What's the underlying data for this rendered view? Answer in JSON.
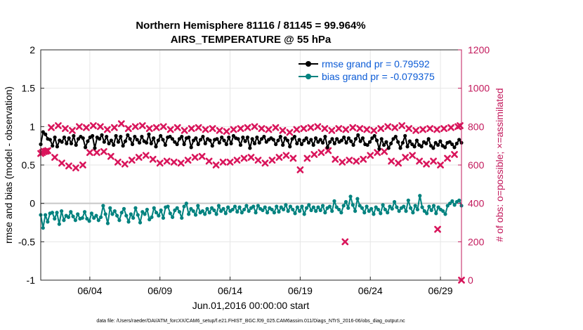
{
  "chart_data": {
    "type": "line",
    "title_line1": "Northern Hemisphere 81116 / 81145 = 99.964%",
    "title_line2": "AIRS_TEMPERATURE @ 55 hPa",
    "xlabel": "Jun.01,2016 00:00:00 start",
    "ylabel_left": "rmse and bias (model - observation)",
    "ylabel_right": "# of obs: o=possible; ×=assimilated",
    "x_range": [
      0.5,
      30.5
    ],
    "left_ylim": [
      -1,
      2
    ],
    "right_ylim": [
      0,
      1200
    ],
    "left_ticks": [
      {
        "v": 2,
        "label": "2"
      },
      {
        "v": 1.5,
        "label": "1.5"
      },
      {
        "v": 1,
        "label": "1"
      },
      {
        "v": 0.5,
        "label": "0.5"
      },
      {
        "v": 0,
        "label": "0"
      },
      {
        "v": -0.5,
        "label": "-0.5"
      },
      {
        "v": -1,
        "label": "-1"
      }
    ],
    "right_ticks": [
      {
        "v": 1200,
        "label": "1200"
      },
      {
        "v": 1000,
        "label": "1000"
      },
      {
        "v": 800,
        "label": "800"
      },
      {
        "v": 600,
        "label": "600"
      },
      {
        "v": 400,
        "label": "400"
      },
      {
        "v": 200,
        "label": "200"
      },
      {
        "v": 0,
        "label": "0"
      }
    ],
    "x_ticks": [
      {
        "v": 4,
        "label": "06/04"
      },
      {
        "v": 9,
        "label": "06/09"
      },
      {
        "v": 14,
        "label": "06/14"
      },
      {
        "v": 19,
        "label": "06/19"
      },
      {
        "v": 24,
        "label": "06/24"
      },
      {
        "v": 29,
        "label": "06/29"
      }
    ],
    "grid": true,
    "legend_position": "top-right",
    "colors": {
      "rmse": "#000000",
      "bias": "#00827f",
      "obs": "#d9155b",
      "right_axis": "#c2185b",
      "zero_line": "#c8c8c8",
      "legend_text": "#0b5bd6"
    },
    "series": [
      {
        "name": "rmse grand pr = 0.79592",
        "key": "rmse",
        "values": [
          0.77,
          0.93,
          0.9,
          0.84,
          0.83,
          0.75,
          0.86,
          0.74,
          0.82,
          0.8,
          0.86,
          0.78,
          0.85,
          0.78,
          0.88,
          0.76,
          0.84,
          0.87,
          0.85,
          0.73,
          0.81,
          0.86,
          0.88,
          0.72,
          0.86,
          0.84,
          0.89,
          0.8,
          0.87,
          0.78,
          0.82,
          0.76,
          0.88,
          0.8,
          0.87,
          0.75,
          0.81,
          0.89,
          0.84,
          0.77,
          0.87,
          0.83,
          0.79,
          0.87,
          0.81,
          0.79,
          0.9,
          0.78,
          0.85,
          0.74,
          0.82,
          0.88,
          0.83,
          0.76,
          0.86,
          0.87,
          0.84,
          0.8,
          0.77,
          0.84,
          0.87,
          0.77,
          0.85,
          0.86,
          0.73,
          0.82,
          0.85,
          0.77,
          0.83,
          0.87,
          0.78,
          0.84,
          0.82,
          0.75,
          0.83,
          0.84,
          0.79,
          0.86,
          0.82,
          0.77,
          0.86,
          0.78,
          0.88,
          0.85,
          0.84,
          0.76,
          0.86,
          0.81,
          0.86,
          0.72,
          0.84,
          0.78,
          0.86,
          0.79,
          0.84,
          0.87,
          0.8,
          0.83,
          0.85,
          0.83,
          0.77,
          0.82,
          0.87,
          0.76,
          0.85,
          0.82,
          0.74,
          0.84,
          0.87,
          0.78,
          0.83,
          0.77,
          0.82,
          0.85,
          0.79,
          0.83,
          0.76,
          0.85,
          0.8,
          0.83,
          0.79,
          0.87,
          0.73,
          0.8,
          0.84,
          0.78,
          0.84,
          0.8,
          0.82,
          0.86,
          0.79,
          0.85,
          0.81,
          0.76,
          0.84,
          0.89,
          0.81,
          0.85,
          0.77,
          0.76,
          0.8,
          0.85,
          0.88,
          0.82,
          0.71,
          0.84,
          0.76,
          0.8,
          0.72,
          0.78,
          0.84,
          0.87,
          0.8,
          0.72,
          0.79,
          0.88,
          0.74,
          0.81,
          0.77,
          0.74,
          0.82,
          0.76,
          0.74,
          0.8,
          0.78,
          0.84,
          0.75,
          0.72,
          0.79,
          0.76,
          0.81,
          0.75,
          0.73,
          0.79,
          0.8,
          0.77,
          0.73,
          0.78,
          0.83,
          0.79
        ]
      },
      {
        "name": "bias grand pr = -0.079375",
        "key": "bias",
        "values": [
          -0.15,
          -0.32,
          -0.15,
          -0.24,
          -0.13,
          -0.12,
          -0.2,
          -0.12,
          -0.27,
          -0.1,
          -0.22,
          -0.16,
          -0.18,
          -0.11,
          -0.17,
          -0.22,
          -0.14,
          -0.2,
          -0.19,
          -0.11,
          -0.2,
          -0.23,
          -0.13,
          -0.19,
          -0.16,
          -0.22,
          -0.18,
          -0.03,
          -0.14,
          -0.26,
          -0.06,
          -0.14,
          -0.1,
          -0.16,
          -0.22,
          -0.12,
          -0.07,
          -0.16,
          -0.24,
          -0.14,
          -0.19,
          -0.06,
          -0.15,
          -0.25,
          -0.11,
          -0.14,
          -0.08,
          -0.21,
          -0.18,
          -0.06,
          -0.12,
          -0.16,
          -0.09,
          -0.19,
          -0.05,
          -0.04,
          -0.13,
          -0.18,
          -0.09,
          -0.06,
          -0.11,
          -0.19,
          -0.04,
          0.0,
          -0.14,
          -0.07,
          -0.1,
          -0.15,
          -0.03,
          -0.12,
          -0.1,
          -0.14,
          -0.07,
          -0.12,
          -0.06,
          -0.09,
          -0.14,
          -0.03,
          -0.1,
          -0.07,
          -0.13,
          -0.05,
          -0.1,
          -0.08,
          -0.04,
          -0.11,
          -0.05,
          -0.12,
          -0.08,
          -0.03,
          -0.1,
          -0.06,
          -0.04,
          -0.12,
          -0.03,
          -0.07,
          -0.09,
          -0.05,
          -0.12,
          -0.06,
          -0.08,
          -0.12,
          -0.04,
          -0.11,
          -0.05,
          -0.08,
          -0.02,
          -0.1,
          -0.04,
          -0.08,
          -0.13,
          -0.05,
          -0.1,
          -0.04,
          -0.14,
          -0.06,
          -0.02,
          -0.09,
          -0.05,
          -0.1,
          -0.05,
          -0.09,
          -0.03,
          -0.12,
          -0.06,
          -0.04,
          -0.1,
          0.03,
          -0.05,
          -0.08,
          -0.12,
          -0.03,
          0.02,
          -0.06,
          0.09,
          -0.02,
          -0.1,
          0.06,
          -0.03,
          -0.06,
          -0.12,
          -0.04,
          -0.1,
          -0.07,
          -0.14,
          -0.05,
          -0.08,
          -0.13,
          -0.02,
          -0.08,
          -0.12,
          -0.04,
          -0.07,
          0.02,
          -0.05,
          -0.1,
          -0.06,
          -0.04,
          -0.1,
          0.04,
          -0.06,
          -0.12,
          -0.03,
          -0.08,
          0.1,
          -0.05,
          -0.1,
          -0.13,
          -0.04,
          -0.09,
          -0.03,
          -0.13,
          -0.05,
          -0.08,
          -0.1,
          -0.14,
          -0.03,
          0.0,
          0.03,
          -0.02,
          0.02,
          0.04,
          -0.03
        ]
      }
    ],
    "obs_assimilated": {
      "name": "# of obs assimilated",
      "x": [
        0.5,
        0.62,
        0.75,
        0.88,
        1.0,
        1.5,
        2.0,
        2.5,
        3.0,
        3.5,
        4.0,
        4.5,
        5.0,
        5.5,
        6.0,
        6.5,
        7.0,
        7.5,
        8.0,
        8.5,
        9.0,
        9.5,
        10.0,
        10.5,
        11.0,
        11.5,
        12.0,
        12.5,
        13.0,
        13.5,
        14.0,
        14.5,
        15.0,
        15.5,
        16.0,
        16.5,
        17.0,
        17.5,
        18.0,
        18.5,
        19.0,
        19.5,
        20.0,
        20.5,
        21.0,
        21.5,
        22.0,
        22.5,
        23.0,
        23.5,
        24.0,
        24.5,
        25.0,
        25.5,
        26.0,
        26.5,
        27.0,
        27.5,
        28.0,
        28.5,
        29.0,
        29.5,
        30.0,
        30.5,
        1.25,
        1.75,
        2.25,
        2.75,
        3.25,
        3.75,
        4.25,
        4.75,
        5.25,
        5.75,
        6.25,
        6.75,
        7.25,
        7.75,
        8.25,
        8.75,
        9.25,
        9.75,
        10.25,
        10.75,
        11.25,
        11.75,
        12.25,
        12.75,
        13.25,
        13.75,
        14.25,
        14.75,
        15.25,
        15.75,
        16.25,
        16.75,
        17.25,
        17.75,
        18.25,
        18.75,
        19.25,
        19.75,
        20.25,
        20.75,
        21.25,
        21.75,
        22.25,
        22.75,
        23.25,
        23.75,
        24.25,
        24.75,
        25.25,
        25.75,
        26.25,
        26.75,
        27.25,
        27.75,
        28.25,
        28.75,
        29.25,
        29.75,
        30.25,
        30.4
      ],
      "values": [
        660,
        665,
        670,
        672,
        675,
        640,
        610,
        595,
        585,
        600,
        665,
        665,
        670,
        645,
        615,
        605,
        625,
        640,
        650,
        630,
        610,
        620,
        615,
        610,
        625,
        640,
        645,
        620,
        600,
        615,
        615,
        625,
        635,
        640,
        625,
        610,
        625,
        640,
        650,
        635,
        575,
        635,
        655,
        665,
        675,
        630,
        615,
        625,
        620,
        630,
        650,
        665,
        670,
        620,
        610,
        640,
        650,
        620,
        605,
        620,
        600,
        635,
        655,
        0,
        795,
        805,
        790,
        780,
        800,
        795,
        805,
        800,
        785,
        795,
        815,
        790,
        800,
        805,
        790,
        795,
        800,
        785,
        795,
        780,
        790,
        795,
        785,
        790,
        780,
        775,
        785,
        790,
        795,
        800,
        790,
        785,
        795,
        780,
        770,
        785,
        790,
        795,
        800,
        790,
        780,
        790,
        785,
        795,
        790,
        785,
        780,
        790,
        800,
        795,
        805,
        790,
        780,
        785,
        790,
        785,
        790,
        795,
        800,
        805
      ],
      "outliers_x": [
        22.2,
        28.8
      ],
      "outliers_values": [
        200,
        265
      ]
    }
  }
}
